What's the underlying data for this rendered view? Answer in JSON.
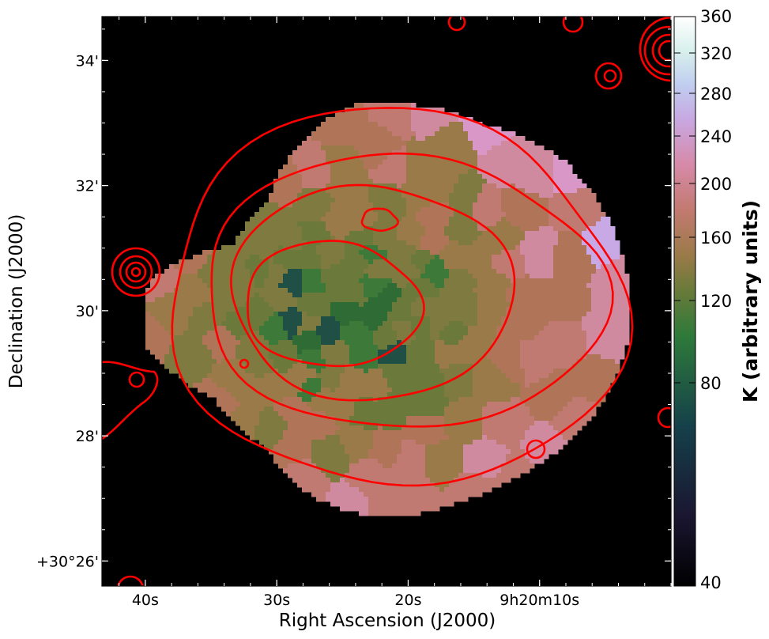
{
  "chart_data": {
    "type": "heatmap",
    "xlabel": "Right Ascension (J2000)",
    "ylabel": "Declination (J2000)",
    "x_ticks": [
      {
        "label": "40s",
        "ra_sec": 40
      },
      {
        "label": "30s",
        "ra_sec": 30
      },
      {
        "label": "20s",
        "ra_sec": 20
      },
      {
        "label": "9h20m10s",
        "ra_sec": 10
      }
    ],
    "y_ticks": [
      {
        "label": "34'",
        "dec_arcmin": 34
      },
      {
        "label": "32'",
        "dec_arcmin": 32
      },
      {
        "label": "30'",
        "dec_arcmin": 30
      },
      {
        "label": "28'",
        "dec_arcmin": 28
      },
      {
        "label": "+30°26'",
        "dec_arcmin": 26
      }
    ],
    "xlim_ra_sec": [
      43.3,
      0.0
    ],
    "ylim_dec_arcmin": [
      25.6,
      34.7
    ],
    "background_color": "#000000",
    "contour_color": "#ff0000",
    "colorbar": {
      "label": "K (arbitrary units)",
      "range": [
        40,
        360
      ],
      "scale": "nonlinear",
      "colormap": "cubehelix",
      "ticks": [
        40,
        80,
        120,
        160,
        200,
        240,
        280,
        320,
        360
      ]
    }
  }
}
